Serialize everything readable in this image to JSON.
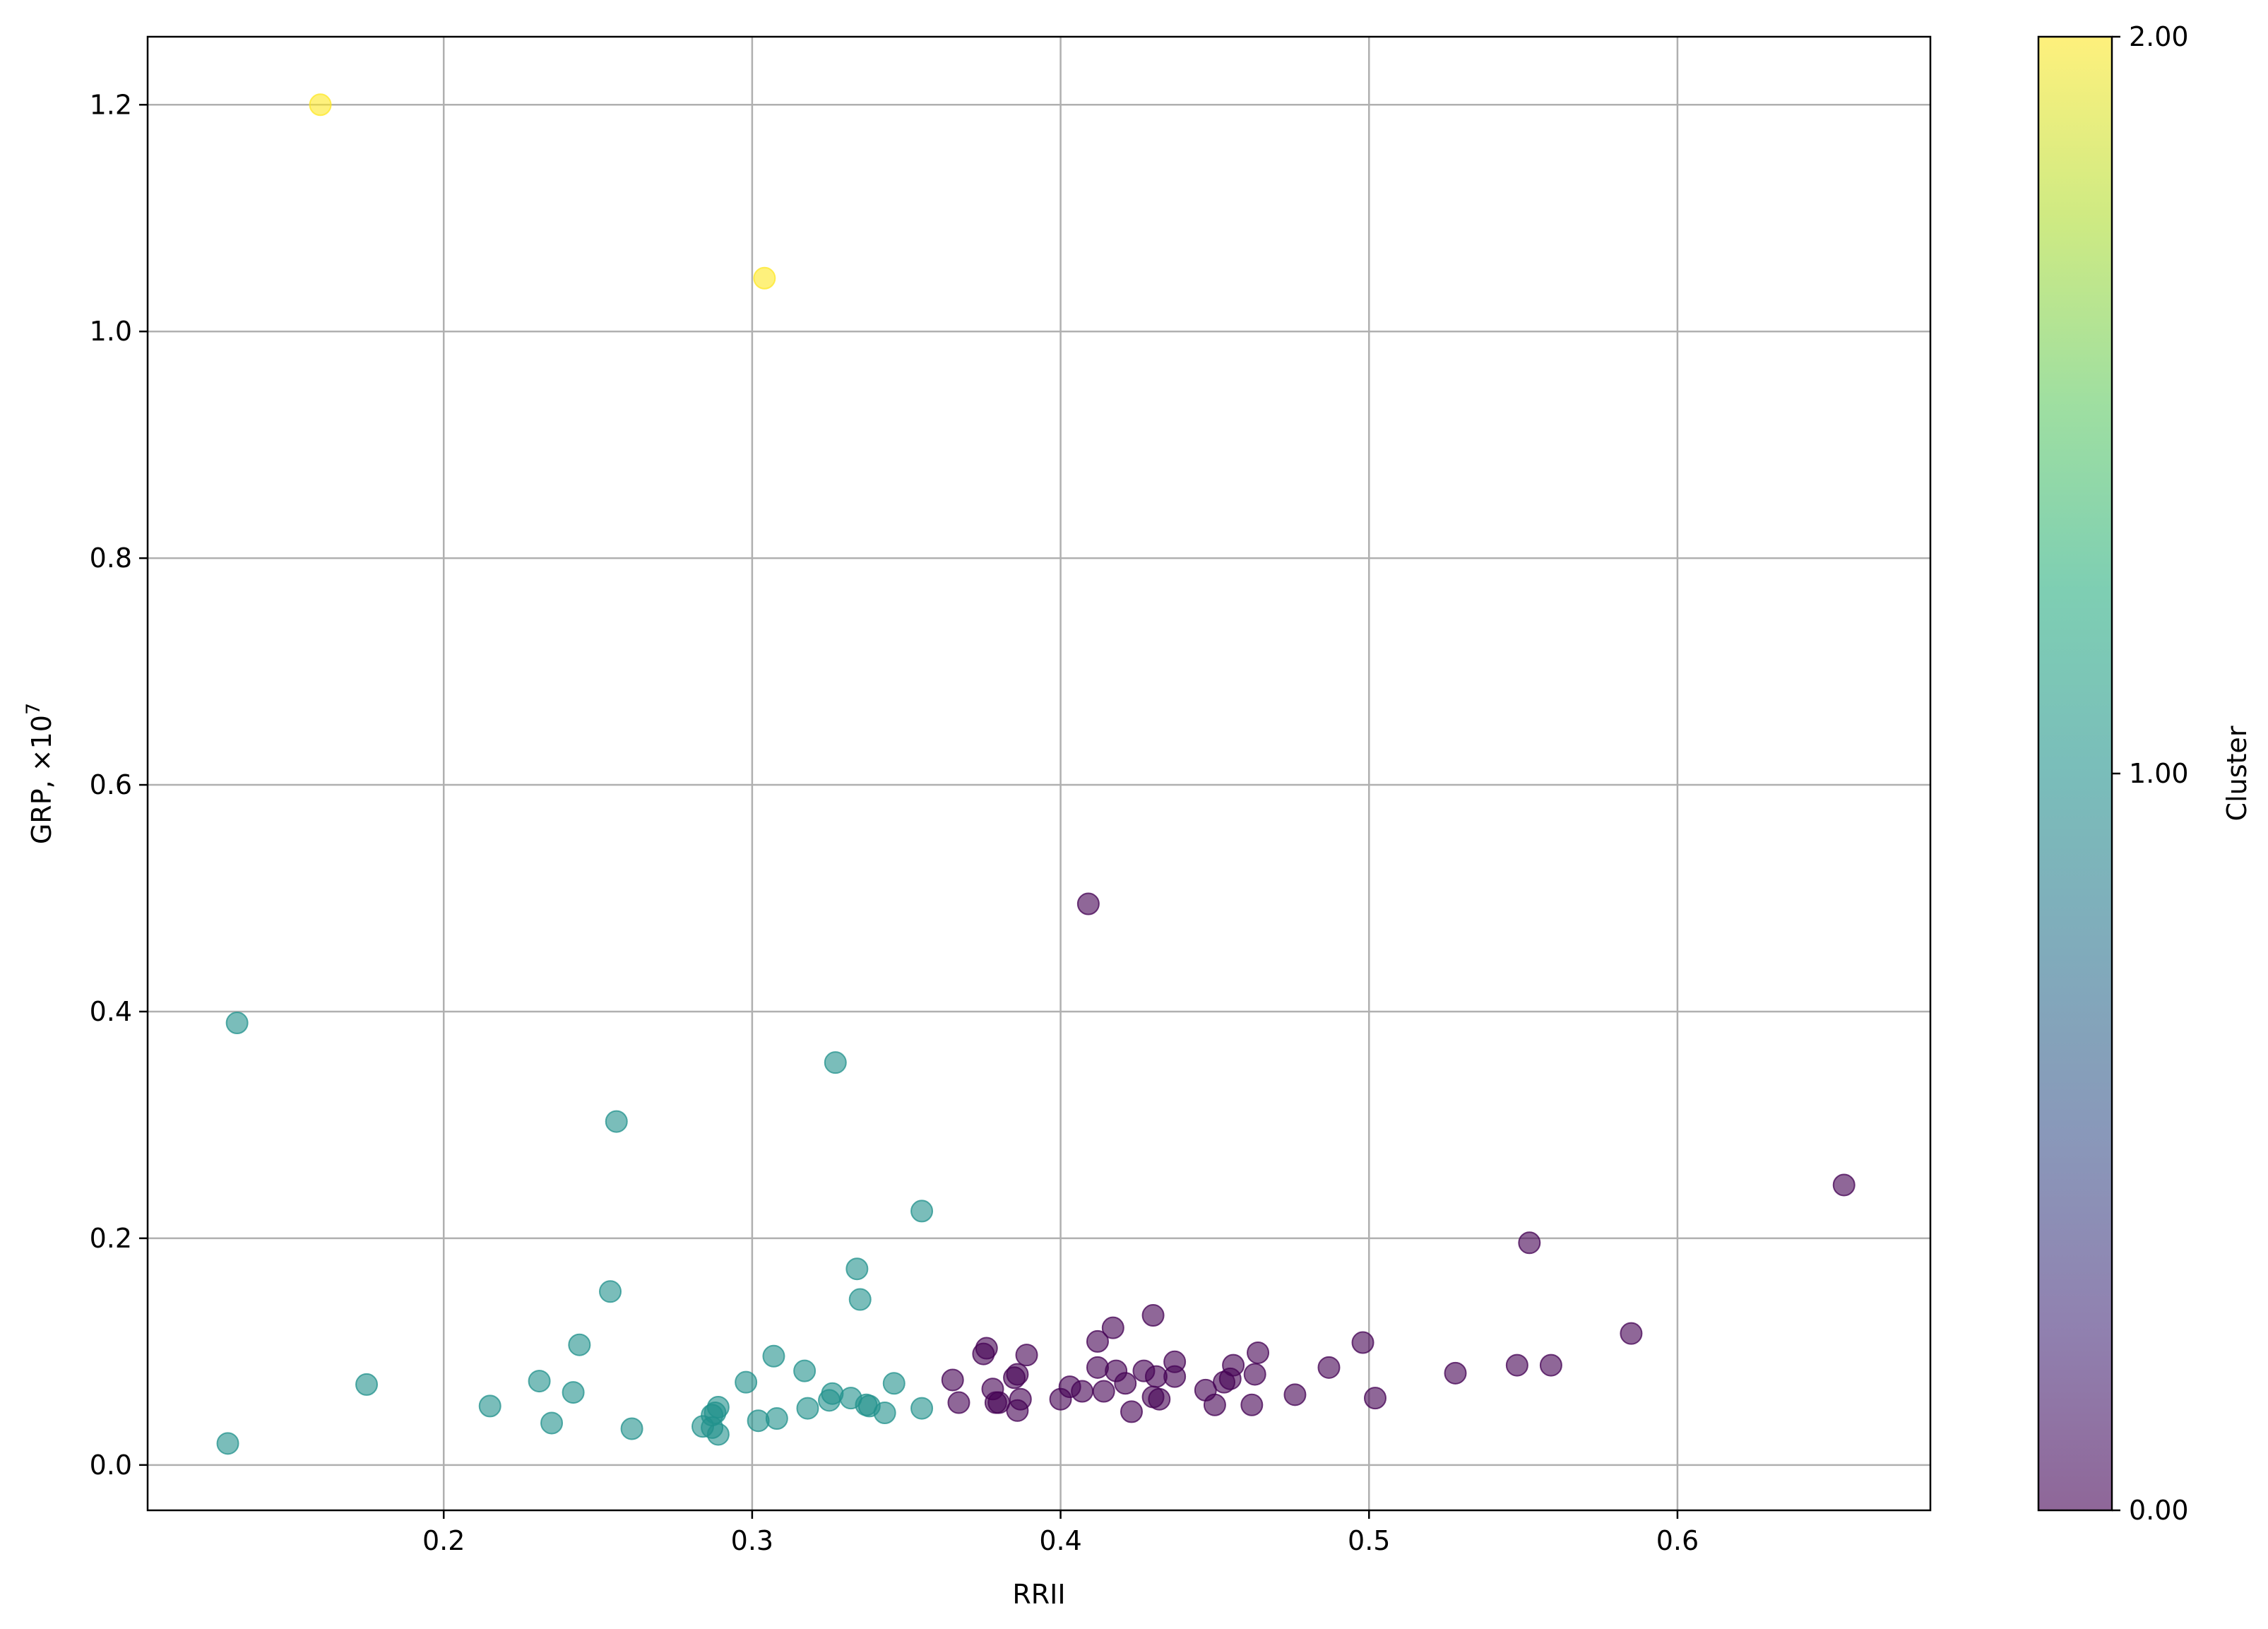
{
  "chart_data": {
    "type": "scatter",
    "title": "",
    "xlabel": "RRII",
    "ylabel": "GRP, ×10",
    "ylabel_exponent": "7",
    "xlim": [
      0.104,
      0.682
    ],
    "ylim": [
      -0.04,
      1.26
    ],
    "xticks": [
      0.2,
      0.3,
      0.4,
      0.5,
      0.6
    ],
    "xtick_labels": [
      "0.2",
      "0.3",
      "0.4",
      "0.5",
      "0.6"
    ],
    "yticks": [
      0.0,
      0.2,
      0.4,
      0.6,
      0.8,
      1.0,
      1.2
    ],
    "ytick_labels": [
      "0.0",
      "0.2",
      "0.4",
      "0.6",
      "0.8",
      "1.0",
      "1.2"
    ],
    "grid": true,
    "colorbar": {
      "label": "Cluster",
      "min": 0,
      "max": 2,
      "ticks": [
        0,
        1,
        2
      ],
      "tick_labels": [
        "0.00",
        "1.00",
        "2.00"
      ],
      "colormap": "viridis"
    },
    "point_alpha": 0.6,
    "series": [
      {
        "cluster": 2,
        "color": "#fde725",
        "x": [
          0.16,
          0.304
        ],
        "y": [
          1.2,
          1.047
        ]
      },
      {
        "cluster": 1,
        "color": "#21918c",
        "x": [
          0.133,
          0.13,
          0.175,
          0.215,
          0.231,
          0.235,
          0.242,
          0.244,
          0.254,
          0.256,
          0.261,
          0.284,
          0.287,
          0.288,
          0.287,
          0.289,
          0.289,
          0.298,
          0.302,
          0.307,
          0.308,
          0.317,
          0.318,
          0.325,
          0.326,
          0.327,
          0.332,
          0.334,
          0.335,
          0.337,
          0.338,
          0.343,
          0.346,
          0.355,
          0.355
        ],
        "y": [
          0.39,
          0.019,
          0.071,
          0.052,
          0.074,
          0.037,
          0.064,
          0.106,
          0.153,
          0.303,
          0.032,
          0.034,
          0.033,
          0.046,
          0.044,
          0.027,
          0.051,
          0.073,
          0.039,
          0.096,
          0.041,
          0.083,
          0.05,
          0.057,
          0.063,
          0.355,
          0.059,
          0.173,
          0.146,
          0.053,
          0.052,
          0.046,
          0.072,
          0.05,
          0.224
        ]
      },
      {
        "cluster": 0,
        "color": "#440154",
        "x": [
          0.365,
          0.367,
          0.375,
          0.376,
          0.378,
          0.379,
          0.38,
          0.385,
          0.386,
          0.386,
          0.387,
          0.389,
          0.4,
          0.403,
          0.407,
          0.409,
          0.412,
          0.412,
          0.414,
          0.417,
          0.418,
          0.421,
          0.423,
          0.427,
          0.43,
          0.43,
          0.431,
          0.432,
          0.437,
          0.437,
          0.447,
          0.45,
          0.453,
          0.455,
          0.456,
          0.462,
          0.463,
          0.464,
          0.476,
          0.487,
          0.498,
          0.502,
          0.528,
          0.548,
          0.552,
          0.559,
          0.585,
          0.654
        ],
        "y": [
          0.075,
          0.055,
          0.098,
          0.103,
          0.067,
          0.055,
          0.055,
          0.077,
          0.048,
          0.08,
          0.058,
          0.097,
          0.058,
          0.069,
          0.065,
          0.495,
          0.109,
          0.086,
          0.065,
          0.121,
          0.083,
          0.072,
          0.047,
          0.083,
          0.132,
          0.06,
          0.078,
          0.058,
          0.091,
          0.078,
          0.066,
          0.053,
          0.073,
          0.076,
          0.088,
          0.053,
          0.08,
          0.099,
          0.062,
          0.086,
          0.108,
          0.059,
          0.081,
          0.088,
          0.196,
          0.088,
          0.116,
          0.247
        ]
      }
    ]
  }
}
